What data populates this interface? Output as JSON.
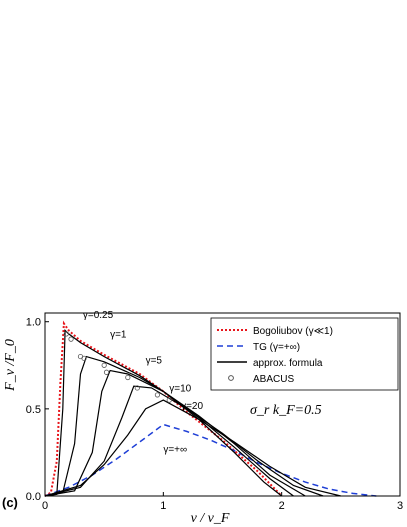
{
  "chart_data": {
    "type": "line",
    "panel_label": "(c)",
    "xlabel": "ν / ν_F",
    "ylabel": "F_ν /F_0",
    "xlim": [
      0,
      3
    ],
    "ylim": [
      0,
      1.05
    ],
    "xticks": [
      "0",
      "1",
      "2",
      "3"
    ],
    "yticks": [
      "0.0",
      "0.5",
      "1.0"
    ],
    "parameter_text": "σ_r k_F=0.5",
    "legend": {
      "placement": "top-right",
      "entries": [
        {
          "label": "Bogoliubov (γ≪1)",
          "style": "red-dotted"
        },
        {
          "label": "TG (γ=+∞)",
          "style": "blue-dashed"
        },
        {
          "label": "approx. formula",
          "style": "black-solid"
        },
        {
          "label": "ABACUS",
          "style": "open-circle"
        }
      ]
    },
    "colors": {
      "bogoliubov": "#e8151b",
      "tg": "#1f3fd6",
      "approx": "#000000",
      "abacus": "#555555"
    },
    "annotations": [
      "γ=0.25",
      "γ=1",
      "γ=5",
      "γ=10",
      "γ=20",
      "γ=+∞"
    ],
    "series": [
      {
        "name": "Bogoliubov (γ≪1)",
        "x": [
          0.0,
          0.05,
          0.1,
          0.13,
          0.16,
          0.2,
          0.3,
          0.5,
          0.8,
          1.0,
          1.2,
          1.5,
          1.8,
          2.0
        ],
        "y": [
          0.0,
          0.02,
          0.2,
          0.65,
          0.99,
          0.95,
          0.89,
          0.81,
          0.7,
          0.6,
          0.48,
          0.32,
          0.14,
          0.0
        ]
      },
      {
        "name": "TG (γ=+∞)",
        "x": [
          0.0,
          0.2,
          0.4,
          0.6,
          0.8,
          1.0,
          1.2,
          1.4,
          1.6,
          1.8,
          2.0,
          2.2,
          2.4,
          2.6,
          2.8
        ],
        "y": [
          0.0,
          0.05,
          0.12,
          0.21,
          0.31,
          0.41,
          0.37,
          0.32,
          0.26,
          0.19,
          0.13,
          0.08,
          0.04,
          0.015,
          0.0
        ]
      },
      {
        "name": "approx. formula γ=0.25",
        "x": [
          0.0,
          0.1,
          0.15,
          0.17,
          0.2,
          0.3,
          0.5,
          0.8,
          1.0,
          1.3,
          1.6,
          1.85,
          2.0
        ],
        "y": [
          0.0,
          0.01,
          0.5,
          0.95,
          0.93,
          0.88,
          0.8,
          0.69,
          0.6,
          0.44,
          0.25,
          0.08,
          0.0
        ]
      },
      {
        "name": "approx. formula γ=1",
        "x": [
          0.0,
          0.15,
          0.25,
          0.3,
          0.35,
          0.5,
          0.8,
          1.0,
          1.3,
          1.6,
          1.9,
          2.1
        ],
        "y": [
          0.0,
          0.02,
          0.3,
          0.7,
          0.8,
          0.77,
          0.68,
          0.6,
          0.45,
          0.28,
          0.1,
          0.0
        ]
      },
      {
        "name": "approx. formula γ=5",
        "x": [
          0.0,
          0.25,
          0.4,
          0.48,
          0.55,
          0.7,
          1.0,
          1.3,
          1.6,
          1.9,
          2.2
        ],
        "y": [
          0.0,
          0.03,
          0.25,
          0.6,
          0.72,
          0.7,
          0.6,
          0.46,
          0.3,
          0.12,
          0.0
        ]
      },
      {
        "name": "approx. formula γ=10",
        "x": [
          0.0,
          0.3,
          0.5,
          0.65,
          0.75,
          0.9,
          1.2,
          1.5,
          1.8,
          2.1,
          2.35
        ],
        "y": [
          0.0,
          0.05,
          0.2,
          0.45,
          0.63,
          0.62,
          0.5,
          0.36,
          0.2,
          0.06,
          0.0
        ]
      },
      {
        "name": "approx. formula γ=20",
        "x": [
          0.0,
          0.3,
          0.5,
          0.7,
          0.85,
          1.0,
          1.3,
          1.6,
          1.9,
          2.2,
          2.5
        ],
        "y": [
          0.0,
          0.06,
          0.18,
          0.35,
          0.5,
          0.55,
          0.44,
          0.31,
          0.17,
          0.05,
          0.0
        ]
      },
      {
        "name": "ABACUS",
        "x": [
          0.18,
          0.22,
          0.3,
          0.33,
          0.5,
          0.52,
          0.7,
          0.78,
          0.95,
          1.05
        ],
        "y": [
          0.93,
          0.9,
          0.8,
          0.79,
          0.75,
          0.71,
          0.68,
          0.62,
          0.58,
          0.55
        ]
      }
    ]
  }
}
